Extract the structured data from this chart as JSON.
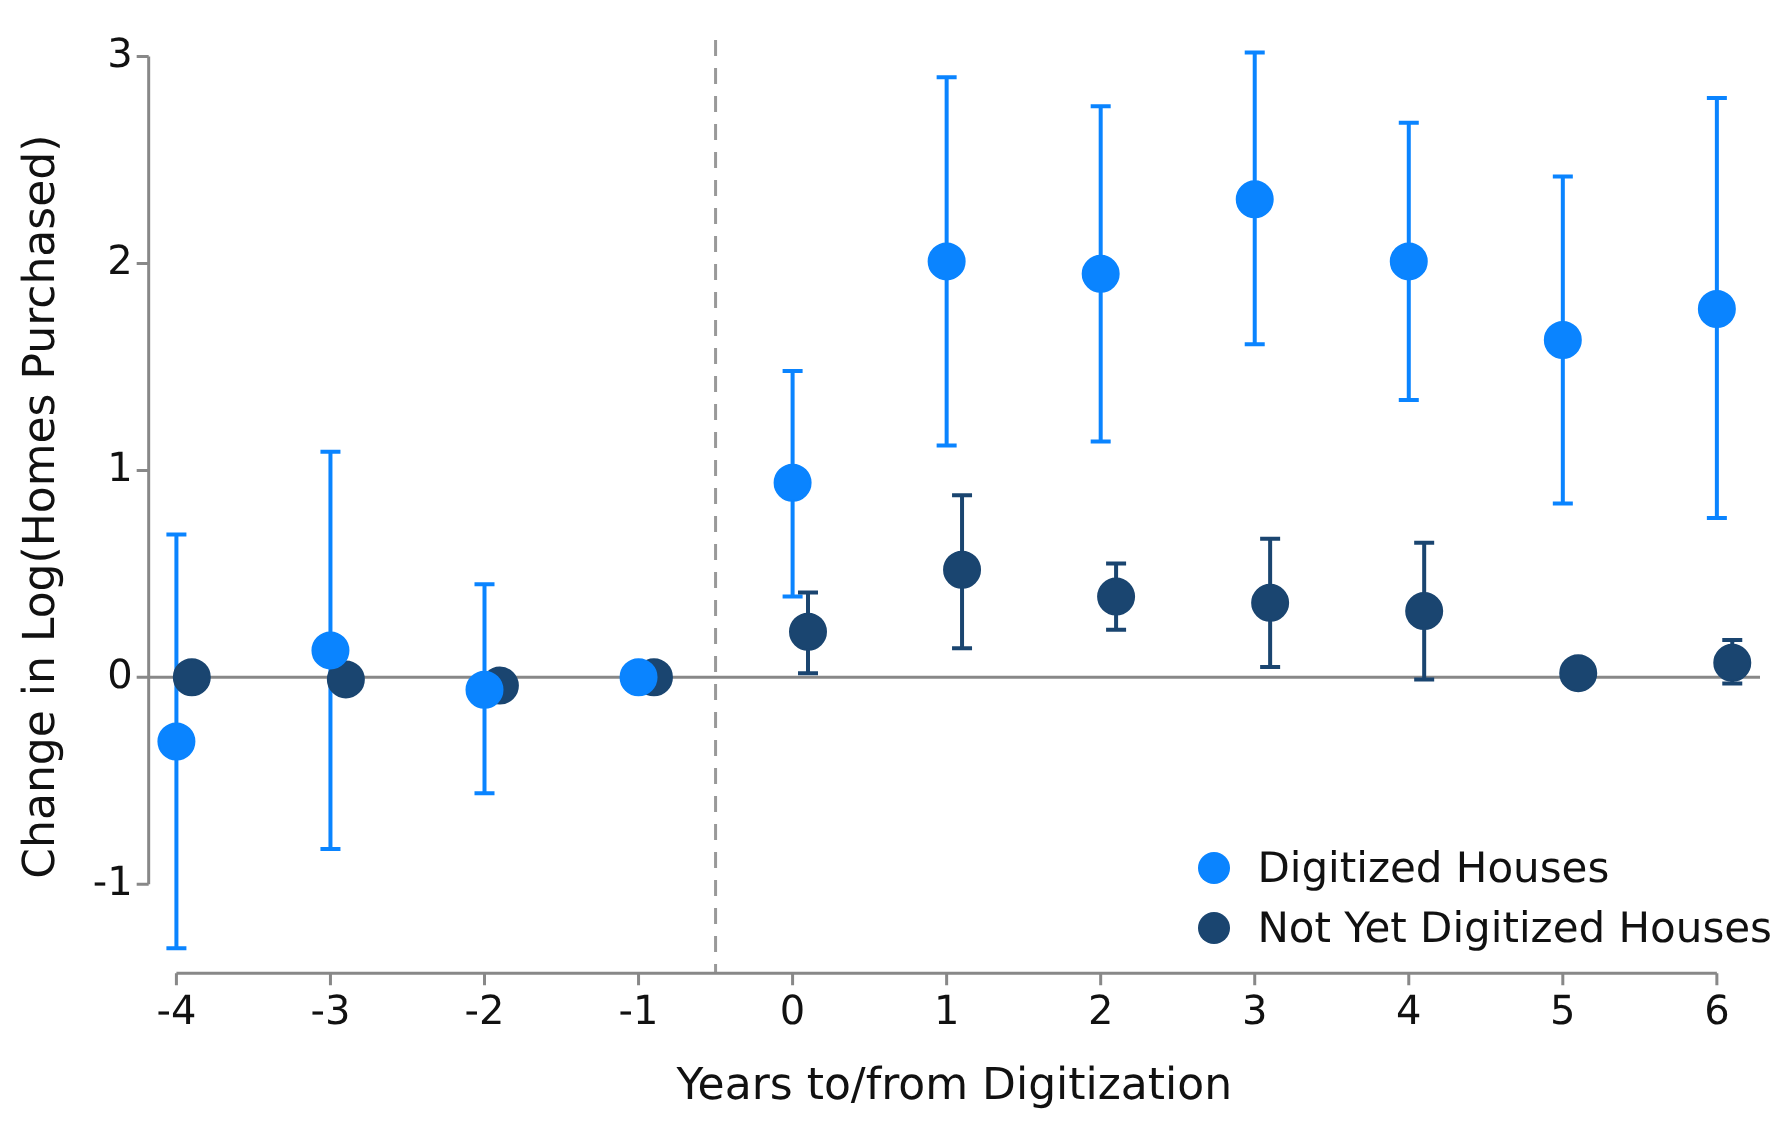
{
  "chart_data": {
    "type": "scatter",
    "xlabel": "Years to/from Digitization",
    "ylabel": "Change in Log(Homes Purchased)",
    "xlim": [
      -4.18,
      6.28
    ],
    "ylim": [
      -1.43,
      3.08
    ],
    "xticks": [
      -4,
      -3,
      -2,
      -1,
      0,
      1,
      2,
      3,
      4,
      5,
      6
    ],
    "yticks": [
      -1,
      0,
      1,
      2,
      3
    ],
    "grid": false,
    "legend": "bottom right",
    "marker": "circle",
    "ref_lines": [
      {
        "axis": "x",
        "value": -0.5,
        "color": "#999999",
        "line_style": "dashed"
      },
      {
        "axis": "y",
        "value": 0,
        "color": "#888888",
        "line_style": "solid"
      }
    ],
    "series": [
      {
        "name": "Digitized Houses",
        "color": "#0a84ff",
        "x": [
          -4,
          -3,
          -2,
          -1,
          0,
          1,
          2,
          3,
          4,
          5,
          6
        ],
        "values": [
          -0.31,
          0.13,
          -0.06,
          0,
          0.94,
          2.01,
          1.95,
          2.31,
          2.01,
          1.63,
          1.78
        ],
        "errors": [
          [
            -1.31,
            0.69
          ],
          [
            -0.83,
            1.09
          ],
          [
            -0.56,
            0.45
          ],
          null,
          [
            0.39,
            1.48
          ],
          [
            1.12,
            2.9
          ],
          [
            1.14,
            2.76
          ],
          [
            1.61,
            3.02
          ],
          [
            1.34,
            2.68
          ],
          [
            0.84,
            2.42
          ],
          [
            0.77,
            2.8
          ]
        ]
      },
      {
        "name": "Not Yet Digitized Houses",
        "color": "#1a4570",
        "x": [
          -3.9,
          -2.9,
          -1.9,
          -0.9,
          0.1,
          1.1,
          2.1,
          3.1,
          4.1,
          5.1,
          6.1
        ],
        "values": [
          0,
          -0.01,
          -0.04,
          0,
          0.22,
          0.52,
          0.39,
          0.36,
          0.32,
          0.02,
          0.07
        ],
        "errors": [
          null,
          null,
          null,
          null,
          [
            0.02,
            0.41
          ],
          [
            0.14,
            0.88
          ],
          [
            0.23,
            0.55
          ],
          [
            0.05,
            0.67
          ],
          [
            -0.01,
            0.65
          ],
          null,
          [
            -0.03,
            0.18
          ]
        ]
      }
    ]
  }
}
